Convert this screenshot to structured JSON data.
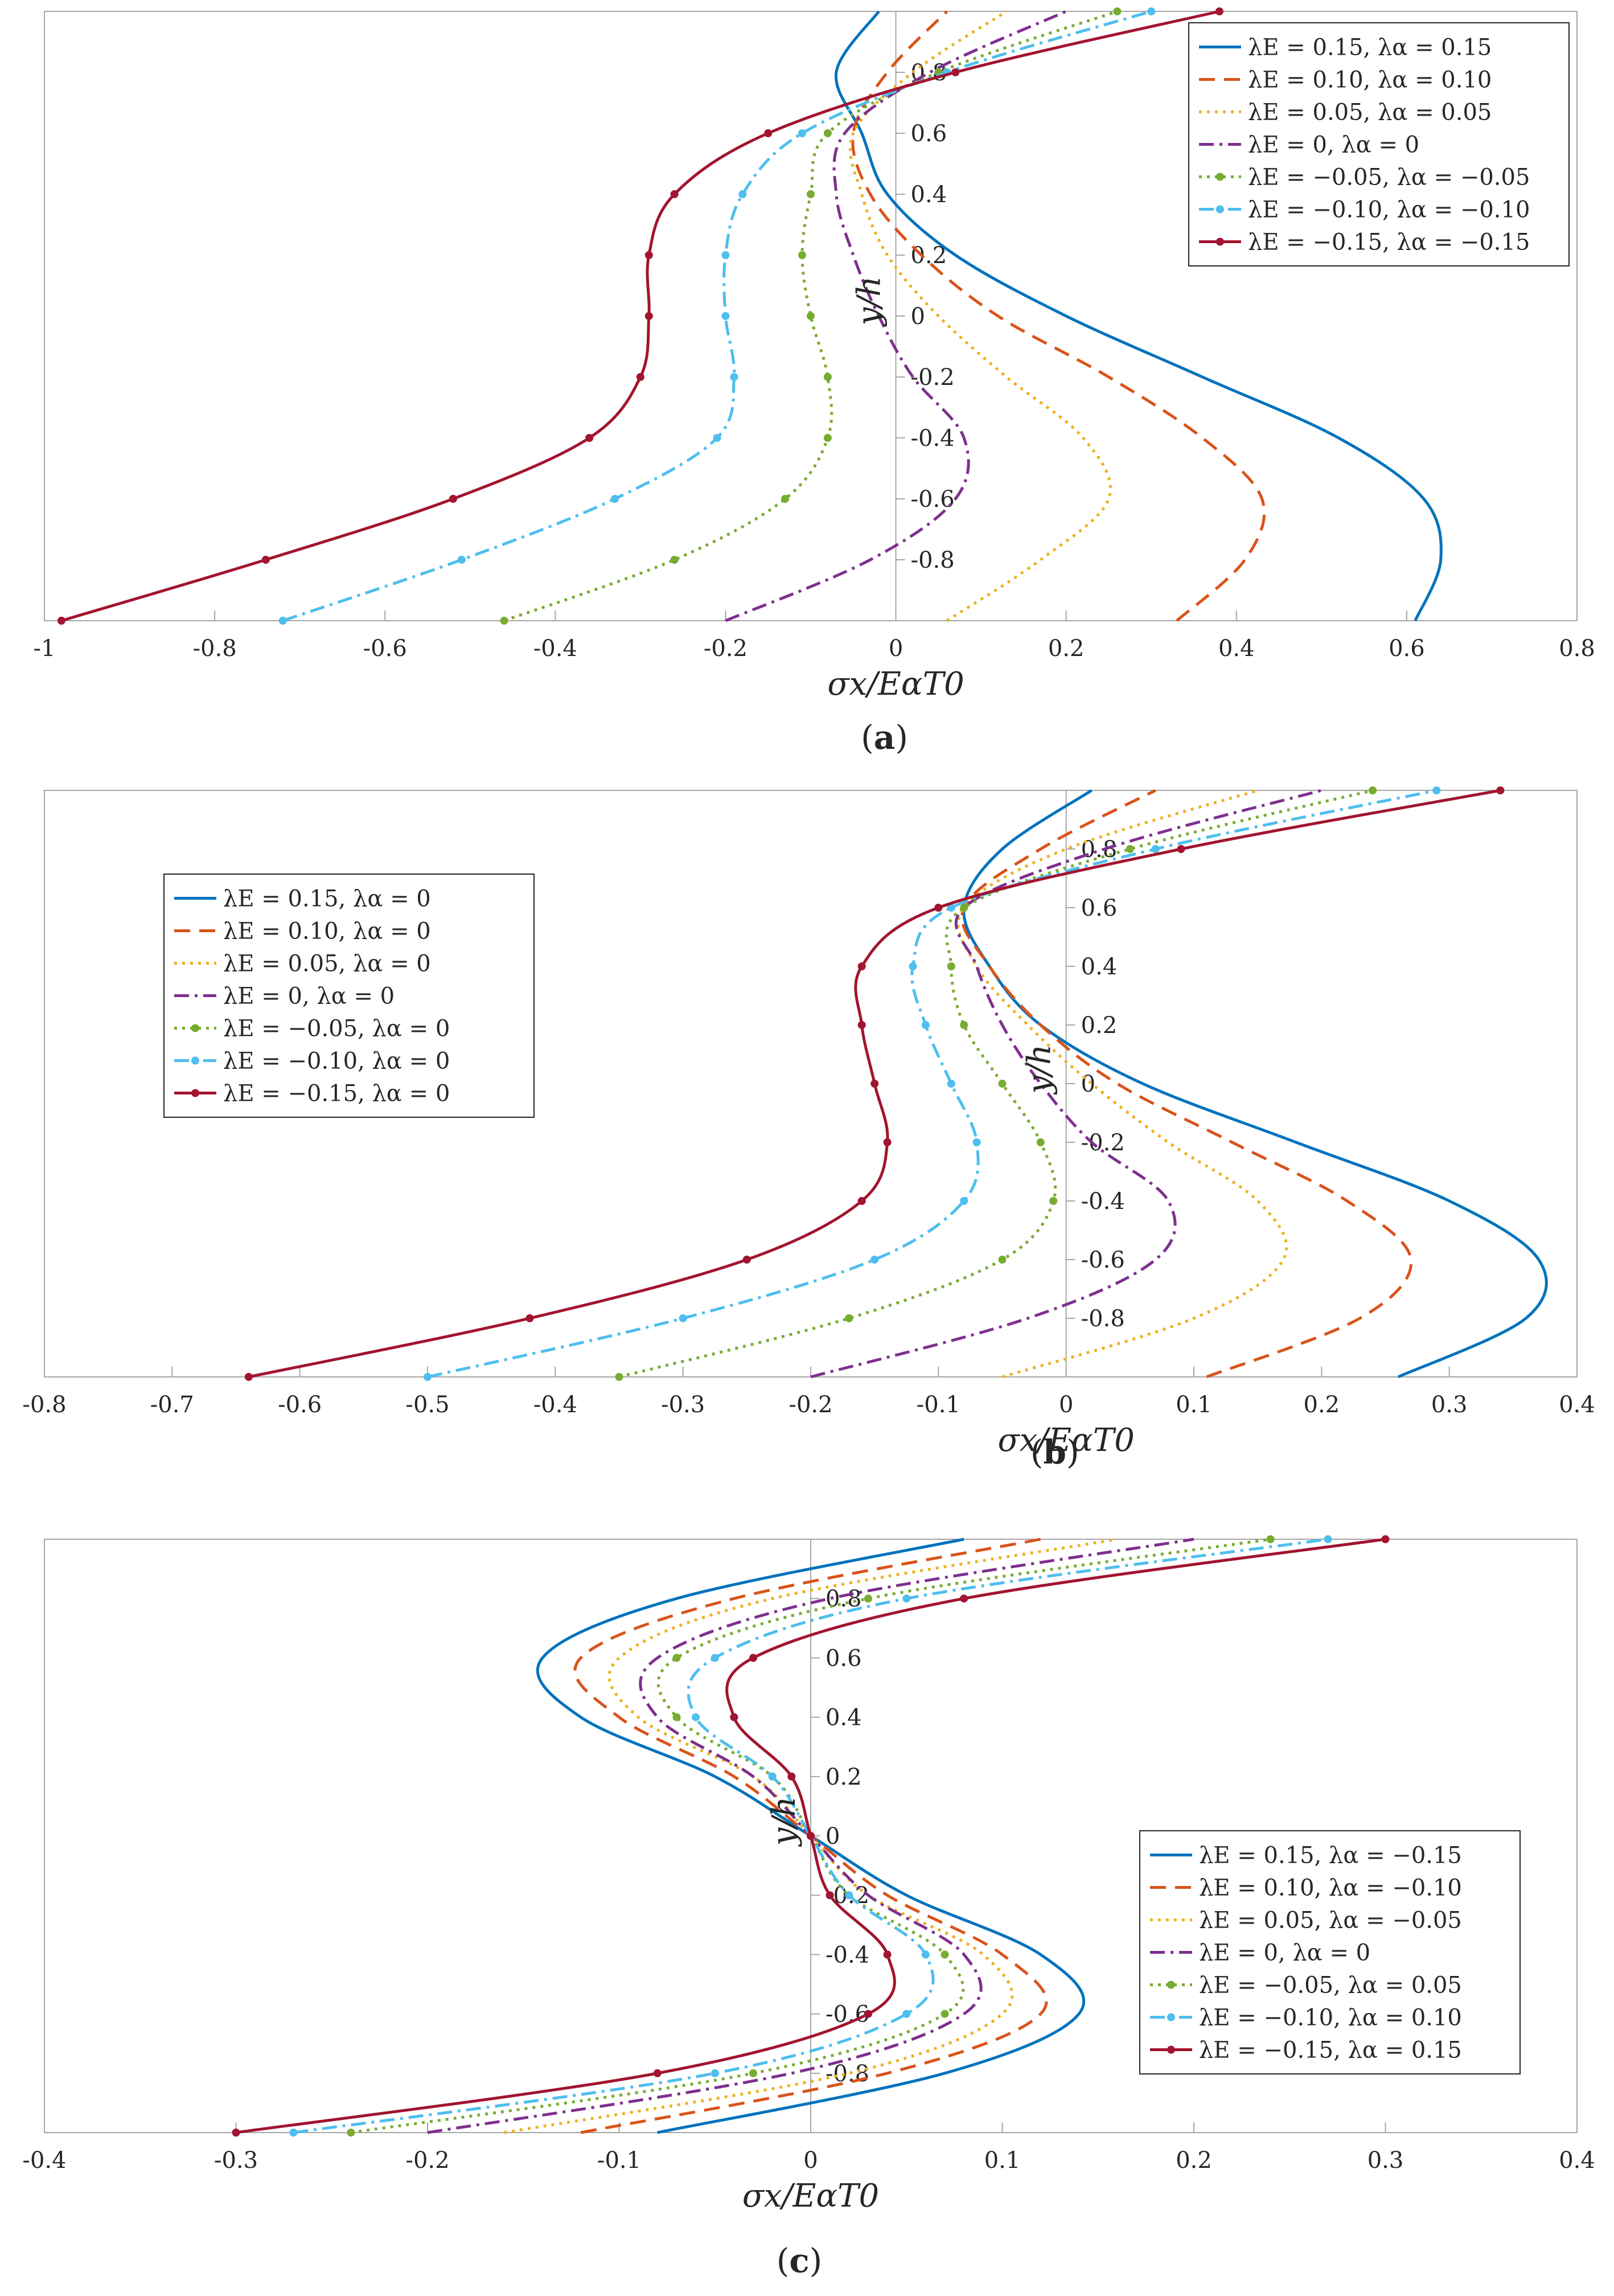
{
  "chart_data": [
    {
      "type": "line",
      "panel_label": "a",
      "xlabel": "σx/EαT0",
      "ylabel": "y/h",
      "xlim": [
        -1,
        0.8
      ],
      "ylim": [
        -1,
        1
      ],
      "x_ticks": [
        "-1",
        "-0.8",
        "-0.6",
        "-0.4",
        "-0.2",
        "0",
        "0.2",
        "0.4",
        "0.6",
        "0.8"
      ],
      "y_ticks": [
        "0.8",
        "0.6",
        "0.4",
        "0.2",
        "0",
        "-0.2",
        "-0.4",
        "-0.6",
        "-0.8"
      ],
      "legend_position": "top-right",
      "grid": false,
      "series": [
        {
          "name": "λE = 0.15, λα = 0.15",
          "color": "#0072BD",
          "dash": "solid",
          "marker": false,
          "y": [
            -1,
            -0.8,
            -0.6,
            -0.4,
            -0.2,
            0,
            0.2,
            0.4,
            0.6,
            0.8,
            1
          ],
          "x": [
            0.61,
            0.64,
            0.62,
            0.52,
            0.36,
            0.2,
            0.07,
            -0.01,
            -0.04,
            -0.07,
            -0.02
          ]
        },
        {
          "name": "λE = 0.10, λα = 0.10",
          "color": "#D95319",
          "dash": "dashed",
          "marker": false,
          "y": [
            -1,
            -0.8,
            -0.6,
            -0.4,
            -0.2,
            0,
            0.2,
            0.4,
            0.6,
            0.8,
            1
          ],
          "x": [
            0.33,
            0.41,
            0.43,
            0.36,
            0.25,
            0.12,
            0.03,
            -0.03,
            -0.05,
            -0.01,
            0.06
          ]
        },
        {
          "name": "λE = 0.05, λα = 0.05",
          "color": "#EDB120",
          "dash": "dotted",
          "marker": false,
          "y": [
            -1,
            -0.8,
            -0.6,
            -0.4,
            -0.2,
            0,
            0.2,
            0.4,
            0.6,
            0.8,
            1
          ],
          "x": [
            0.06,
            0.17,
            0.25,
            0.22,
            0.13,
            0.05,
            -0.01,
            -0.04,
            -0.05,
            0.02,
            0.13
          ]
        },
        {
          "name": "λE = 0, λα = 0",
          "color": "#7E2F8E",
          "dash": "dashdot",
          "marker": false,
          "y": [
            -1,
            -0.8,
            -0.6,
            -0.4,
            -0.2,
            0,
            0.2,
            0.4,
            0.6,
            0.8,
            1
          ],
          "x": [
            -0.2,
            -0.03,
            0.07,
            0.08,
            0.02,
            -0.02,
            -0.05,
            -0.07,
            -0.06,
            0.04,
            0.2
          ]
        },
        {
          "name": "λE = −0.05, λα = −0.05",
          "color": "#77AC30",
          "dash": "dotted",
          "marker": true,
          "y": [
            -1,
            -0.8,
            -0.6,
            -0.4,
            -0.2,
            0,
            0.2,
            0.4,
            0.6,
            0.8,
            1
          ],
          "x": [
            -0.46,
            -0.26,
            -0.13,
            -0.08,
            -0.08,
            -0.1,
            -0.11,
            -0.1,
            -0.08,
            0.05,
            0.26
          ]
        },
        {
          "name": "λE = −0.10, λα = −0.10",
          "color": "#4DBEEE",
          "dash": "dashdot",
          "marker": true,
          "y": [
            -1,
            -0.8,
            -0.6,
            -0.4,
            -0.2,
            0,
            0.2,
            0.4,
            0.6,
            0.8,
            1
          ],
          "x": [
            -0.72,
            -0.51,
            -0.33,
            -0.21,
            -0.19,
            -0.2,
            -0.2,
            -0.18,
            -0.11,
            0.06,
            0.3
          ]
        },
        {
          "name": "λE = −0.15, λα = −0.15",
          "color": "#A2142F",
          "dash": "solid",
          "marker": true,
          "y": [
            -1,
            -0.8,
            -0.6,
            -0.4,
            -0.2,
            0,
            0.2,
            0.4,
            0.6,
            0.8,
            1
          ],
          "x": [
            -0.98,
            -0.74,
            -0.52,
            -0.36,
            -0.3,
            -0.29,
            -0.29,
            -0.26,
            -0.15,
            0.07,
            0.38
          ]
        }
      ]
    },
    {
      "type": "line",
      "panel_label": "b",
      "xlabel": "σx/EαT0",
      "ylabel": "y/h",
      "xlim": [
        -0.8,
        0.4
      ],
      "ylim": [
        -1,
        1
      ],
      "x_ticks": [
        "-0.8",
        "-0.7",
        "-0.6",
        "-0.5",
        "-0.4",
        "-0.3",
        "-0.2",
        "-0.1",
        "0",
        "0.1",
        "0.2",
        "0.3",
        "0.4"
      ],
      "y_ticks": [
        "0.8",
        "0.6",
        "0.4",
        "0.2",
        "0",
        "-0.2",
        "-0.4",
        "-0.6",
        "-0.8"
      ],
      "legend_position": "top-left",
      "grid": false,
      "series": [
        {
          "name": "λE = 0.15, λα = 0",
          "color": "#0072BD",
          "dash": "solid",
          "marker": false,
          "y": [
            -1,
            -0.8,
            -0.6,
            -0.4,
            -0.2,
            0,
            0.2,
            0.4,
            0.6,
            0.8,
            1
          ],
          "x": [
            0.26,
            0.36,
            0.37,
            0.3,
            0.18,
            0.06,
            -0.02,
            -0.06,
            -0.08,
            -0.05,
            0.02
          ]
        },
        {
          "name": "λE = 0.10, λα = 0",
          "color": "#D95319",
          "dash": "dashed",
          "marker": false,
          "y": [
            -1,
            -0.8,
            -0.6,
            -0.4,
            -0.2,
            0,
            0.2,
            0.4,
            0.6,
            0.8,
            1
          ],
          "x": [
            0.11,
            0.23,
            0.27,
            0.22,
            0.13,
            0.04,
            -0.02,
            -0.06,
            -0.08,
            -0.02,
            0.07
          ]
        },
        {
          "name": "λE = 0.05, λα = 0",
          "color": "#EDB120",
          "dash": "dotted",
          "marker": false,
          "y": [
            -1,
            -0.8,
            -0.6,
            -0.4,
            -0.2,
            0,
            0.2,
            0.4,
            0.6,
            0.8,
            1
          ],
          "x": [
            -0.05,
            0.1,
            0.17,
            0.15,
            0.08,
            0.02,
            -0.03,
            -0.07,
            -0.08,
            0.0,
            0.15
          ]
        },
        {
          "name": "λE = 0, λα = 0",
          "color": "#7E2F8E",
          "dash": "dashdot",
          "marker": false,
          "y": [
            -1,
            -0.8,
            -0.6,
            -0.4,
            -0.2,
            0,
            0.2,
            0.4,
            0.6,
            0.8,
            1
          ],
          "x": [
            -0.2,
            -0.03,
            0.07,
            0.08,
            0.02,
            -0.02,
            -0.05,
            -0.07,
            -0.08,
            0.03,
            0.2
          ]
        },
        {
          "name": "λE = −0.05, λα = 0",
          "color": "#77AC30",
          "dash": "dotted",
          "marker": true,
          "y": [
            -1,
            -0.8,
            -0.6,
            -0.4,
            -0.2,
            0,
            0.2,
            0.4,
            0.6,
            0.8,
            1
          ],
          "x": [
            -0.35,
            -0.17,
            -0.05,
            -0.01,
            -0.02,
            -0.05,
            -0.08,
            -0.09,
            -0.08,
            0.05,
            0.24
          ]
        },
        {
          "name": "λE = −0.10, λα = 0",
          "color": "#4DBEEE",
          "dash": "dashdot",
          "marker": true,
          "y": [
            -1,
            -0.8,
            -0.6,
            -0.4,
            -0.2,
            0,
            0.2,
            0.4,
            0.6,
            0.8,
            1
          ],
          "x": [
            -0.5,
            -0.3,
            -0.15,
            -0.08,
            -0.07,
            -0.09,
            -0.11,
            -0.12,
            -0.09,
            0.07,
            0.29
          ]
        },
        {
          "name": "λE = −0.15, λα = 0",
          "color": "#A2142F",
          "dash": "solid",
          "marker": true,
          "y": [
            -1,
            -0.8,
            -0.6,
            -0.4,
            -0.2,
            0,
            0.2,
            0.4,
            0.6,
            0.8,
            1
          ],
          "x": [
            -0.64,
            -0.42,
            -0.25,
            -0.16,
            -0.14,
            -0.15,
            -0.16,
            -0.16,
            -0.1,
            0.09,
            0.34
          ]
        }
      ]
    },
    {
      "type": "line",
      "panel_label": "c",
      "xlabel": "σx/EαT0",
      "ylabel": "y/h",
      "xlim": [
        -0.4,
        0.4
      ],
      "ylim": [
        -1,
        1
      ],
      "x_ticks": [
        "-0.4",
        "-0.3",
        "-0.2",
        "-0.1",
        "0",
        "0.1",
        "0.2",
        "0.3",
        "0.4"
      ],
      "y_ticks": [
        "0.8",
        "0.6",
        "0.4",
        "0.2",
        "0",
        "-0.2",
        "-0.4",
        "-0.6",
        "-0.8"
      ],
      "legend_position": "right",
      "grid": false,
      "series": [
        {
          "name": "λE = 0.15, λα = −0.15",
          "color": "#0072BD",
          "dash": "solid",
          "marker": false,
          "y": [
            -1,
            -0.8,
            -0.6,
            -0.4,
            -0.2,
            0,
            0.2,
            0.4,
            0.6,
            0.8,
            1
          ],
          "x": [
            -0.08,
            0.07,
            0.14,
            0.12,
            0.05,
            0,
            -0.05,
            -0.12,
            -0.14,
            -0.07,
            0.08
          ]
        },
        {
          "name": "λE = 0.10, λα = −0.10",
          "color": "#D95319",
          "dash": "dashed",
          "marker": false,
          "y": [
            -1,
            -0.8,
            -0.6,
            -0.4,
            -0.2,
            0,
            0.2,
            0.4,
            0.6,
            0.8,
            1
          ],
          "x": [
            -0.12,
            0.04,
            0.12,
            0.1,
            0.04,
            0,
            -0.04,
            -0.1,
            -0.12,
            -0.04,
            0.12
          ]
        },
        {
          "name": "λE = 0.05, λα = −0.05",
          "color": "#EDB120",
          "dash": "dotted",
          "marker": false,
          "y": [
            -1,
            -0.8,
            -0.6,
            -0.4,
            -0.2,
            0,
            0.2,
            0.4,
            0.6,
            0.8,
            1
          ],
          "x": [
            -0.16,
            0.02,
            0.1,
            0.09,
            0.03,
            0,
            -0.03,
            -0.09,
            -0.1,
            -0.02,
            0.16
          ]
        },
        {
          "name": "λE = 0, λα = 0",
          "color": "#7E2F8E",
          "dash": "dashdot",
          "marker": false,
          "y": [
            -1,
            -0.8,
            -0.6,
            -0.4,
            -0.2,
            0,
            0.2,
            0.4,
            0.6,
            0.8,
            1
          ],
          "x": [
            -0.2,
            -0.01,
            0.08,
            0.08,
            0.03,
            0,
            -0.03,
            -0.08,
            -0.08,
            0.01,
            0.2
          ]
        },
        {
          "name": "λE = −0.05, λα = 0.05",
          "color": "#77AC30",
          "dash": "dotted",
          "marker": true,
          "y": [
            -1,
            -0.8,
            -0.6,
            -0.4,
            -0.2,
            0,
            0.2,
            0.4,
            0.6,
            0.8,
            1
          ],
          "x": [
            -0.24,
            -0.03,
            0.07,
            0.07,
            0.02,
            0,
            -0.02,
            -0.07,
            -0.07,
            0.03,
            0.24
          ]
        },
        {
          "name": "λE = −0.10, λα = 0.10",
          "color": "#4DBEEE",
          "dash": "dashdot",
          "marker": true,
          "y": [
            -1,
            -0.8,
            -0.6,
            -0.4,
            -0.2,
            0,
            0.2,
            0.4,
            0.6,
            0.8,
            1
          ],
          "x": [
            -0.27,
            -0.05,
            0.05,
            0.06,
            0.02,
            0,
            -0.02,
            -0.06,
            -0.05,
            0.05,
            0.27
          ]
        },
        {
          "name": "λE = −0.15, λα = 0.15",
          "color": "#A2142F",
          "dash": "solid",
          "marker": true,
          "y": [
            -1,
            -0.8,
            -0.6,
            -0.4,
            -0.2,
            0,
            0.2,
            0.4,
            0.6,
            0.8,
            1
          ],
          "x": [
            -0.3,
            -0.08,
            0.03,
            0.04,
            0.01,
            0,
            -0.01,
            -0.04,
            -0.03,
            0.08,
            0.3
          ]
        }
      ]
    }
  ]
}
